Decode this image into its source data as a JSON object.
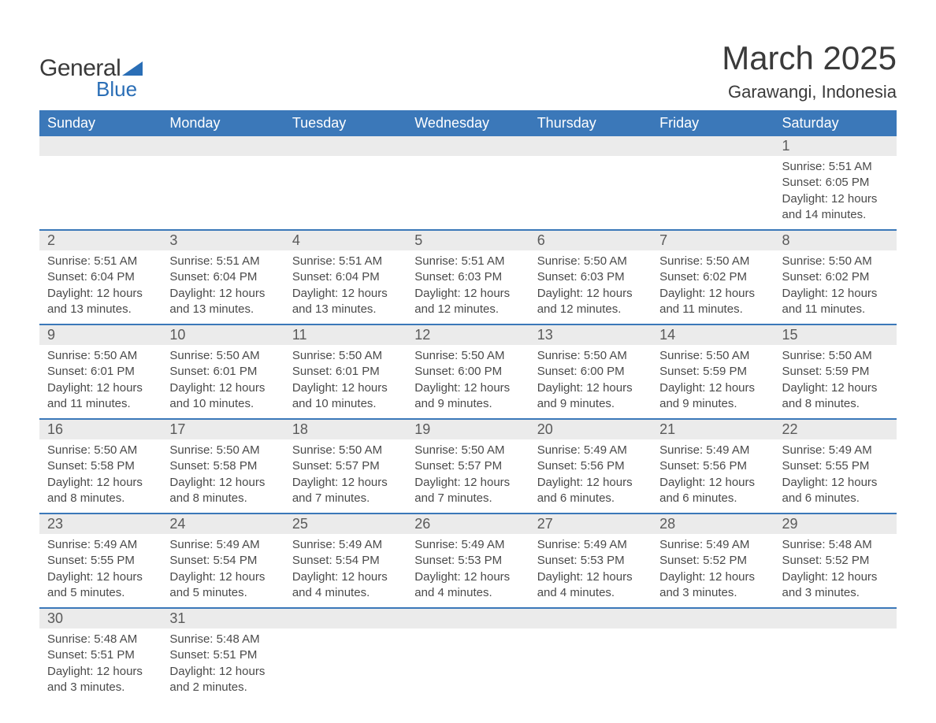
{
  "logo": {
    "text1": "General",
    "text2": "Blue"
  },
  "title": "March 2025",
  "location": "Garawangi, Indonesia",
  "colors": {
    "header_bg": "#3b78b9",
    "header_text": "#ffffff",
    "daynum_bg": "#ebebeb",
    "row_border": "#3b78b9",
    "body_text": "#4a4a4a",
    "title_text": "#3a3a3a",
    "logo_accent": "#2a6eb6"
  },
  "day_headers": [
    "Sunday",
    "Monday",
    "Tuesday",
    "Wednesday",
    "Thursday",
    "Friday",
    "Saturday"
  ],
  "weeks": [
    [
      null,
      null,
      null,
      null,
      null,
      null,
      {
        "n": "1",
        "sunrise": "5:51 AM",
        "sunset": "6:05 PM",
        "daylight": "12 hours and 14 minutes."
      }
    ],
    [
      {
        "n": "2",
        "sunrise": "5:51 AM",
        "sunset": "6:04 PM",
        "daylight": "12 hours and 13 minutes."
      },
      {
        "n": "3",
        "sunrise": "5:51 AM",
        "sunset": "6:04 PM",
        "daylight": "12 hours and 13 minutes."
      },
      {
        "n": "4",
        "sunrise": "5:51 AM",
        "sunset": "6:04 PM",
        "daylight": "12 hours and 13 minutes."
      },
      {
        "n": "5",
        "sunrise": "5:51 AM",
        "sunset": "6:03 PM",
        "daylight": "12 hours and 12 minutes."
      },
      {
        "n": "6",
        "sunrise": "5:50 AM",
        "sunset": "6:03 PM",
        "daylight": "12 hours and 12 minutes."
      },
      {
        "n": "7",
        "sunrise": "5:50 AM",
        "sunset": "6:02 PM",
        "daylight": "12 hours and 11 minutes."
      },
      {
        "n": "8",
        "sunrise": "5:50 AM",
        "sunset": "6:02 PM",
        "daylight": "12 hours and 11 minutes."
      }
    ],
    [
      {
        "n": "9",
        "sunrise": "5:50 AM",
        "sunset": "6:01 PM",
        "daylight": "12 hours and 11 minutes."
      },
      {
        "n": "10",
        "sunrise": "5:50 AM",
        "sunset": "6:01 PM",
        "daylight": "12 hours and 10 minutes."
      },
      {
        "n": "11",
        "sunrise": "5:50 AM",
        "sunset": "6:01 PM",
        "daylight": "12 hours and 10 minutes."
      },
      {
        "n": "12",
        "sunrise": "5:50 AM",
        "sunset": "6:00 PM",
        "daylight": "12 hours and 9 minutes."
      },
      {
        "n": "13",
        "sunrise": "5:50 AM",
        "sunset": "6:00 PM",
        "daylight": "12 hours and 9 minutes."
      },
      {
        "n": "14",
        "sunrise": "5:50 AM",
        "sunset": "5:59 PM",
        "daylight": "12 hours and 9 minutes."
      },
      {
        "n": "15",
        "sunrise": "5:50 AM",
        "sunset": "5:59 PM",
        "daylight": "12 hours and 8 minutes."
      }
    ],
    [
      {
        "n": "16",
        "sunrise": "5:50 AM",
        "sunset": "5:58 PM",
        "daylight": "12 hours and 8 minutes."
      },
      {
        "n": "17",
        "sunrise": "5:50 AM",
        "sunset": "5:58 PM",
        "daylight": "12 hours and 8 minutes."
      },
      {
        "n": "18",
        "sunrise": "5:50 AM",
        "sunset": "5:57 PM",
        "daylight": "12 hours and 7 minutes."
      },
      {
        "n": "19",
        "sunrise": "5:50 AM",
        "sunset": "5:57 PM",
        "daylight": "12 hours and 7 minutes."
      },
      {
        "n": "20",
        "sunrise": "5:49 AM",
        "sunset": "5:56 PM",
        "daylight": "12 hours and 6 minutes."
      },
      {
        "n": "21",
        "sunrise": "5:49 AM",
        "sunset": "5:56 PM",
        "daylight": "12 hours and 6 minutes."
      },
      {
        "n": "22",
        "sunrise": "5:49 AM",
        "sunset": "5:55 PM",
        "daylight": "12 hours and 6 minutes."
      }
    ],
    [
      {
        "n": "23",
        "sunrise": "5:49 AM",
        "sunset": "5:55 PM",
        "daylight": "12 hours and 5 minutes."
      },
      {
        "n": "24",
        "sunrise": "5:49 AM",
        "sunset": "5:54 PM",
        "daylight": "12 hours and 5 minutes."
      },
      {
        "n": "25",
        "sunrise": "5:49 AM",
        "sunset": "5:54 PM",
        "daylight": "12 hours and 4 minutes."
      },
      {
        "n": "26",
        "sunrise": "5:49 AM",
        "sunset": "5:53 PM",
        "daylight": "12 hours and 4 minutes."
      },
      {
        "n": "27",
        "sunrise": "5:49 AM",
        "sunset": "5:53 PM",
        "daylight": "12 hours and 4 minutes."
      },
      {
        "n": "28",
        "sunrise": "5:49 AM",
        "sunset": "5:52 PM",
        "daylight": "12 hours and 3 minutes."
      },
      {
        "n": "29",
        "sunrise": "5:48 AM",
        "sunset": "5:52 PM",
        "daylight": "12 hours and 3 minutes."
      }
    ],
    [
      {
        "n": "30",
        "sunrise": "5:48 AM",
        "sunset": "5:51 PM",
        "daylight": "12 hours and 3 minutes."
      },
      {
        "n": "31",
        "sunrise": "5:48 AM",
        "sunset": "5:51 PM",
        "daylight": "12 hours and 2 minutes."
      },
      null,
      null,
      null,
      null,
      null
    ]
  ],
  "labels": {
    "sunrise": "Sunrise:",
    "sunset": "Sunset:",
    "daylight": "Daylight:"
  }
}
